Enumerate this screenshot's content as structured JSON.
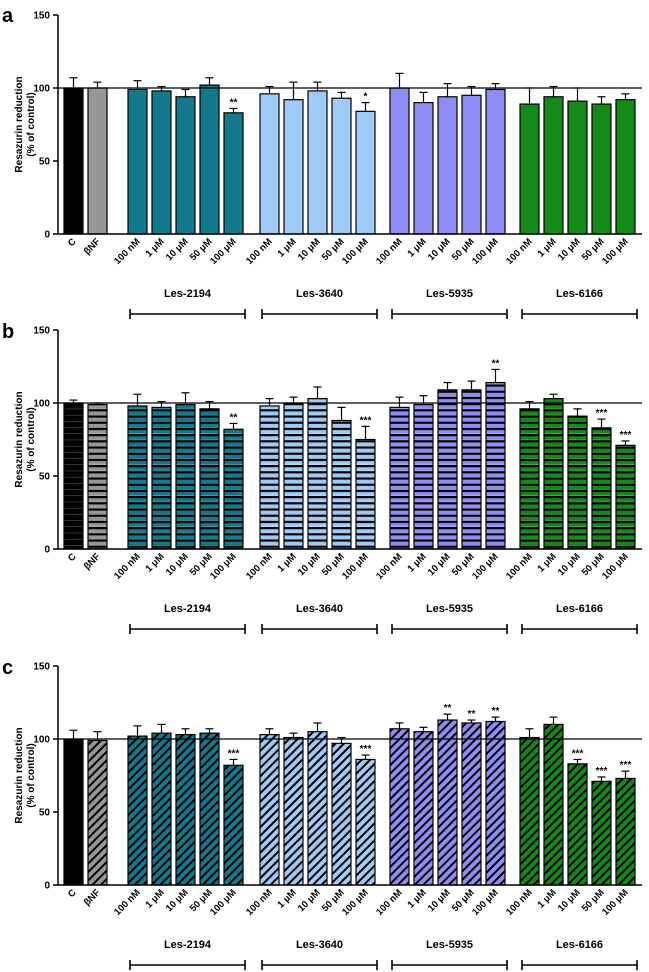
{
  "chart_data": [
    {
      "panel": "a",
      "type": "bar",
      "pattern": "solid",
      "ylabel": [
        "Resazurin reduction",
        "(% of control)"
      ],
      "ylim": [
        0,
        150
      ],
      "yticks": [
        "0",
        "50",
        "100",
        "150"
      ],
      "reference_line": 100,
      "bars": [
        {
          "label": "C",
          "group": "",
          "value": 100,
          "error": 7,
          "sig": "",
          "color": "#000000"
        },
        {
          "label": "βNF",
          "group": "",
          "value": 100,
          "error": 4,
          "sig": "",
          "color": "#969696"
        },
        {
          "label": "100 nM",
          "group": "Les-2194",
          "value": 99,
          "error": 6,
          "sig": "",
          "color": "#137a8e"
        },
        {
          "label": "1 μM",
          "group": "Les-2194",
          "value": 98,
          "error": 3,
          "sig": "",
          "color": "#137a8e"
        },
        {
          "label": "10 μM",
          "group": "Les-2194",
          "value": 94,
          "error": 5,
          "sig": "",
          "color": "#137a8e"
        },
        {
          "label": "50 μM",
          "group": "Les-2194",
          "value": 102,
          "error": 5,
          "sig": "",
          "color": "#137a8e"
        },
        {
          "label": "100 μM",
          "group": "Les-2194",
          "value": 83,
          "error": 3,
          "sig": "**",
          "color": "#137a8e"
        },
        {
          "label": "100 nM",
          "group": "Les-3640",
          "value": 96,
          "error": 5,
          "sig": "",
          "color": "#9ecbf5"
        },
        {
          "label": "1 μM",
          "group": "Les-3640",
          "value": 92,
          "error": 12,
          "sig": "",
          "color": "#9ecbf5"
        },
        {
          "label": "10 μM",
          "group": "Les-3640",
          "value": 98,
          "error": 6,
          "sig": "",
          "color": "#9ecbf5"
        },
        {
          "label": "50 μM",
          "group": "Les-3640",
          "value": 93,
          "error": 4,
          "sig": "",
          "color": "#9ecbf5"
        },
        {
          "label": "100 μM",
          "group": "Les-3640",
          "value": 84,
          "error": 6,
          "sig": "*",
          "color": "#9ecbf5"
        },
        {
          "label": "100 nM",
          "group": "Les-5935",
          "value": 100,
          "error": 10,
          "sig": "",
          "color": "#8f8cf5"
        },
        {
          "label": "1 μM",
          "group": "Les-5935",
          "value": 90,
          "error": 7,
          "sig": "",
          "color": "#8f8cf5"
        },
        {
          "label": "10 μM",
          "group": "Les-5935",
          "value": 94,
          "error": 9,
          "sig": "",
          "color": "#8f8cf5"
        },
        {
          "label": "50 μM",
          "group": "Les-5935",
          "value": 95,
          "error": 6,
          "sig": "",
          "color": "#8f8cf5"
        },
        {
          "label": "100 μM",
          "group": "Les-5935",
          "value": 99,
          "error": 4,
          "sig": "",
          "color": "#8f8cf5"
        },
        {
          "label": "100 nM",
          "group": "Les-6166",
          "value": 89,
          "error": 11,
          "sig": "",
          "color": "#138a17"
        },
        {
          "label": "1 μM",
          "group": "Les-6166",
          "value": 94,
          "error": 7,
          "sig": "",
          "color": "#138a17"
        },
        {
          "label": "10 μM",
          "group": "Les-6166",
          "value": 91,
          "error": 9,
          "sig": "",
          "color": "#138a17"
        },
        {
          "label": "50 μM",
          "group": "Les-6166",
          "value": 89,
          "error": 5,
          "sig": "",
          "color": "#138a17"
        },
        {
          "label": "100 μM",
          "group": "Les-6166",
          "value": 92,
          "error": 4,
          "sig": "",
          "color": "#138a17"
        }
      ],
      "groups": [
        "Les-2194",
        "Les-3640",
        "Les-5935",
        "Les-6166"
      ]
    },
    {
      "panel": "b",
      "type": "bar",
      "pattern": "horizontal",
      "ylabel": [
        "Resazurin reduction",
        "(% of control)"
      ],
      "ylim": [
        0,
        150
      ],
      "yticks": [
        "0",
        "50",
        "100",
        "150"
      ],
      "reference_line": 100,
      "bars": [
        {
          "label": "C",
          "group": "",
          "value": 100,
          "error": 2,
          "sig": "",
          "color": "#000000"
        },
        {
          "label": "βNF",
          "group": "",
          "value": 99,
          "error": 1,
          "sig": "",
          "color": "#969696"
        },
        {
          "label": "100 nM",
          "group": "Les-2194",
          "value": 98,
          "error": 8,
          "sig": "",
          "color": "#137a8e"
        },
        {
          "label": "1 μM",
          "group": "Les-2194",
          "value": 97,
          "error": 4,
          "sig": "",
          "color": "#137a8e"
        },
        {
          "label": "10 μM",
          "group": "Les-2194",
          "value": 99,
          "error": 8,
          "sig": "",
          "color": "#137a8e"
        },
        {
          "label": "50 μM",
          "group": "Les-2194",
          "value": 96,
          "error": 5,
          "sig": "",
          "color": "#137a8e"
        },
        {
          "label": "100 μM",
          "group": "Les-2194",
          "value": 82,
          "error": 4,
          "sig": "**",
          "color": "#137a8e"
        },
        {
          "label": "100 nM",
          "group": "Les-3640",
          "value": 98,
          "error": 5,
          "sig": "",
          "color": "#9ecbf5"
        },
        {
          "label": "1 μM",
          "group": "Les-3640",
          "value": 100,
          "error": 4,
          "sig": "",
          "color": "#9ecbf5"
        },
        {
          "label": "10 μM",
          "group": "Les-3640",
          "value": 103,
          "error": 8,
          "sig": "",
          "color": "#9ecbf5"
        },
        {
          "label": "50 μM",
          "group": "Les-3640",
          "value": 88,
          "error": 9,
          "sig": "",
          "color": "#9ecbf5"
        },
        {
          "label": "100 μM",
          "group": "Les-3640",
          "value": 75,
          "error": 9,
          "sig": "***",
          "color": "#9ecbf5"
        },
        {
          "label": "100 nM",
          "group": "Les-5935",
          "value": 97,
          "error": 7,
          "sig": "",
          "color": "#8f8cf5"
        },
        {
          "label": "1 μM",
          "group": "Les-5935",
          "value": 99,
          "error": 6,
          "sig": "",
          "color": "#8f8cf5"
        },
        {
          "label": "10 μM",
          "group": "Les-5935",
          "value": 109,
          "error": 5,
          "sig": "",
          "color": "#8f8cf5"
        },
        {
          "label": "50 μM",
          "group": "Les-5935",
          "value": 109,
          "error": 6,
          "sig": "",
          "color": "#8f8cf5"
        },
        {
          "label": "100 μM",
          "group": "Les-5935",
          "value": 114,
          "error": 9,
          "sig": "**",
          "color": "#8f8cf5"
        },
        {
          "label": "100 nM",
          "group": "Les-6166",
          "value": 96,
          "error": 5,
          "sig": "",
          "color": "#138a17"
        },
        {
          "label": "1 μM",
          "group": "Les-6166",
          "value": 103,
          "error": 3,
          "sig": "",
          "color": "#138a17"
        },
        {
          "label": "10 μM",
          "group": "Les-6166",
          "value": 91,
          "error": 5,
          "sig": "",
          "color": "#138a17"
        },
        {
          "label": "50 μM",
          "group": "Les-6166",
          "value": 83,
          "error": 6,
          "sig": "***",
          "color": "#138a17"
        },
        {
          "label": "100 μM",
          "group": "Les-6166",
          "value": 71,
          "error": 3,
          "sig": "***",
          "color": "#138a17"
        }
      ],
      "groups": [
        "Les-2194",
        "Les-3640",
        "Les-5935",
        "Les-6166"
      ]
    },
    {
      "panel": "c",
      "type": "bar",
      "pattern": "diagonal",
      "ylabel": [
        "Resazurin reduction",
        "(% of control)"
      ],
      "ylim": [
        0,
        150
      ],
      "yticks": [
        "0",
        "50",
        "100",
        "150"
      ],
      "reference_line": 100,
      "bars": [
        {
          "label": "C",
          "group": "",
          "value": 100,
          "error": 6,
          "sig": "",
          "color": "#000000"
        },
        {
          "label": "βNF",
          "group": "",
          "value": 99,
          "error": 6,
          "sig": "",
          "color": "#969696"
        },
        {
          "label": "100 nM",
          "group": "Les-2194",
          "value": 102,
          "error": 7,
          "sig": "",
          "color": "#137a8e"
        },
        {
          "label": "1 μM",
          "group": "Les-2194",
          "value": 104,
          "error": 6,
          "sig": "",
          "color": "#137a8e"
        },
        {
          "label": "10 μM",
          "group": "Les-2194",
          "value": 103,
          "error": 4,
          "sig": "",
          "color": "#137a8e"
        },
        {
          "label": "50 μM",
          "group": "Les-2194",
          "value": 104,
          "error": 3,
          "sig": "",
          "color": "#137a8e"
        },
        {
          "label": "100 μM",
          "group": "Les-2194",
          "value": 82,
          "error": 4,
          "sig": "***",
          "color": "#137a8e"
        },
        {
          "label": "100 nM",
          "group": "Les-3640",
          "value": 103,
          "error": 4,
          "sig": "",
          "color": "#9ecbf5"
        },
        {
          "label": "1 μM",
          "group": "Les-3640",
          "value": 101,
          "error": 3,
          "sig": "",
          "color": "#9ecbf5"
        },
        {
          "label": "10 μM",
          "group": "Les-3640",
          "value": 105,
          "error": 6,
          "sig": "",
          "color": "#9ecbf5"
        },
        {
          "label": "50 μM",
          "group": "Les-3640",
          "value": 97,
          "error": 4,
          "sig": "",
          "color": "#9ecbf5"
        },
        {
          "label": "100 μM",
          "group": "Les-3640",
          "value": 86,
          "error": 3,
          "sig": "***",
          "color": "#9ecbf5"
        },
        {
          "label": "100 nM",
          "group": "Les-5935",
          "value": 107,
          "error": 4,
          "sig": "",
          "color": "#8f8cf5"
        },
        {
          "label": "1 μM",
          "group": "Les-5935",
          "value": 105,
          "error": 3,
          "sig": "",
          "color": "#8f8cf5"
        },
        {
          "label": "10 μM",
          "group": "Les-5935",
          "value": 113,
          "error": 4,
          "sig": "**",
          "color": "#8f8cf5"
        },
        {
          "label": "50 μM",
          "group": "Les-5935",
          "value": 111,
          "error": 2,
          "sig": "**",
          "color": "#8f8cf5"
        },
        {
          "label": "100 μM",
          "group": "Les-5935",
          "value": 112,
          "error": 3,
          "sig": "**",
          "color": "#8f8cf5"
        },
        {
          "label": "100 nM",
          "group": "Les-6166",
          "value": 101,
          "error": 6,
          "sig": "",
          "color": "#138a17"
        },
        {
          "label": "1 μM",
          "group": "Les-6166",
          "value": 110,
          "error": 5,
          "sig": "",
          "color": "#138a17"
        },
        {
          "label": "10 μM",
          "group": "Les-6166",
          "value": 83,
          "error": 3,
          "sig": "***",
          "color": "#138a17"
        },
        {
          "label": "50 μM",
          "group": "Les-6166",
          "value": 71,
          "error": 3,
          "sig": "***",
          "color": "#138a17"
        },
        {
          "label": "100 μM",
          "group": "Les-6166",
          "value": 73,
          "error": 5,
          "sig": "***",
          "color": "#138a17"
        }
      ],
      "groups": [
        "Les-2194",
        "Les-3640",
        "Les-5935",
        "Les-6166"
      ]
    }
  ]
}
